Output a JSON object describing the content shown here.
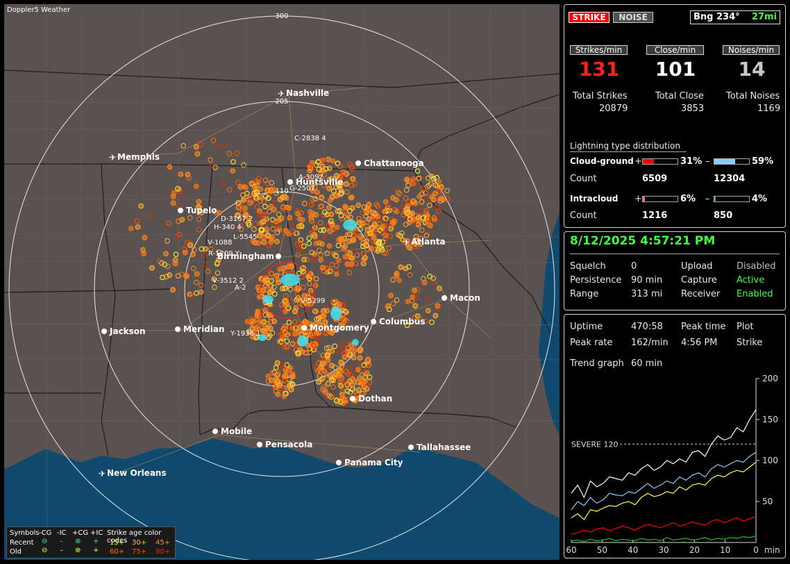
{
  "app_title": "Doppler5 Weather",
  "header": {
    "strike_tab": "STRIKE",
    "noise_tab": "NOISE",
    "bearing": "Bng 234°",
    "distance": "27mi"
  },
  "rates": {
    "strikes_label": "Strikes/min",
    "close_label": "Close/min",
    "noises_label": "Noises/min",
    "strikes_value": "131",
    "close_value": "101",
    "noises_value": "14",
    "total_strikes_label": "Total Strikes",
    "total_close_label": "Total Close",
    "total_noises_label": "Total Noises",
    "total_strikes": "20879",
    "total_close": "3853",
    "total_noises": "1169"
  },
  "distribution": {
    "title": "Lightning type distribution",
    "cg_label": "Cloud-ground",
    "ic_label": "Intracloud",
    "count_label": "Count",
    "plus": "+",
    "minus": "–",
    "cg_pos_pct": "31%",
    "cg_neg_pct": "59%",
    "cg_pos_fill": 0.31,
    "cg_neg_fill": 0.59,
    "cg_pos_count": "6509",
    "cg_neg_count": "12304",
    "ic_pos_pct": "6%",
    "ic_neg_pct": "4%",
    "ic_pos_fill": 0.06,
    "ic_neg_fill": 0.04,
    "ic_pos_count": "1216",
    "ic_neg_count": "850",
    "colors": {
      "cg_pos": "#ff0000",
      "cg_neg": "#8ecbf5",
      "ic_pos": "#ff5a9a",
      "ic_neg": "#20c020"
    }
  },
  "status": {
    "datetime": "8/12/2025 4:57:21 PM",
    "squelch_label": "Squelch",
    "squelch": "0",
    "persistence_label": "Persistence",
    "persistence": "90 min",
    "range_label": "Range",
    "range": "313 mi",
    "upload_label": "Upload",
    "upload": "Disabled",
    "capture_label": "Capture",
    "capture": "Active",
    "receiver_label": "Receiver",
    "receiver": "Enabled"
  },
  "stats": {
    "uptime_label": "Uptime",
    "uptime": "470:58",
    "peak_time_label": "Peak time",
    "peak_time": "4:56 PM",
    "plot_label": "Plot",
    "plot": "Strike",
    "peak_rate_label": "Peak rate",
    "peak_rate": "162/min",
    "trend_label": "Trend graph",
    "trend": "60 min"
  },
  "chart_data": {
    "type": "line",
    "severe_label": "SEVERE 120",
    "severe_value": 120,
    "ylim": [
      0,
      200
    ],
    "y_ticks": [
      "200",
      "150",
      "100",
      "50"
    ],
    "x_ticks": [
      "60",
      "50",
      "40",
      "30",
      "20",
      "10",
      "0"
    ],
    "x_unit": "min",
    "series": [
      {
        "color": "#ffffff",
        "values": [
          60,
          70,
          55,
          75,
          68,
          72,
          80,
          78,
          76,
          85,
          82,
          90,
          95,
          88,
          92,
          100,
          96,
          102,
          98,
          110,
          112,
          105,
          120,
          130,
          125,
          128,
          140,
          135,
          150,
          162
        ]
      },
      {
        "color": "#8ecbf5",
        "values": [
          40,
          50,
          45,
          55,
          48,
          52,
          60,
          58,
          57,
          62,
          60,
          66,
          72,
          66,
          70,
          75,
          72,
          80,
          76,
          82,
          85,
          80,
          90,
          95,
          92,
          96,
          100,
          98,
          105,
          110
        ]
      },
      {
        "color": "#ffff40",
        "values": [
          30,
          35,
          28,
          40,
          38,
          42,
          45,
          44,
          48,
          50,
          46,
          55,
          60,
          56,
          58,
          62,
          60,
          68,
          64,
          70,
          72,
          70,
          78,
          82,
          80,
          85,
          88,
          86,
          92,
          98
        ]
      },
      {
        "color": "#ff0000",
        "values": [
          10,
          12,
          15,
          13,
          16,
          18,
          14,
          17,
          20,
          18,
          15,
          19,
          22,
          20,
          18,
          21,
          24,
          20,
          22,
          25,
          23,
          21,
          26,
          28,
          24,
          27,
          30,
          26,
          29,
          32
        ]
      },
      {
        "color": "#20c020",
        "values": [
          2,
          3,
          1,
          4,
          2,
          3,
          5,
          2,
          4,
          3,
          2,
          5,
          3,
          4,
          2,
          6,
          3,
          4,
          5,
          3,
          4,
          6,
          3,
          5,
          4,
          6,
          5,
          7,
          6,
          8
        ]
      }
    ]
  },
  "map": {
    "range_labels": [
      "300",
      "205",
      "110"
    ],
    "cities": [
      {
        "name": "Nashville",
        "type": "airport"
      },
      {
        "name": "Memphis",
        "type": "airport"
      },
      {
        "name": "Chattanooga",
        "type": "city"
      },
      {
        "name": "Huntsville",
        "type": "city"
      },
      {
        "name": "Tupelo",
        "type": "city"
      },
      {
        "name": "Atlanta",
        "type": "airport"
      },
      {
        "name": "Birmingham",
        "type": "city"
      },
      {
        "name": "Macon",
        "type": "city"
      },
      {
        "name": "Jackson",
        "type": "city"
      },
      {
        "name": "Meridian",
        "type": "city"
      },
      {
        "name": "Montgomery",
        "type": "city"
      },
      {
        "name": "Columbus",
        "type": "city"
      },
      {
        "name": "Dothan",
        "type": "city"
      },
      {
        "name": "Mobile",
        "type": "city"
      },
      {
        "name": "Pensacola",
        "type": "city"
      },
      {
        "name": "Tallahassee",
        "type": "city"
      },
      {
        "name": "Panama City",
        "type": "city"
      },
      {
        "name": "New Orleans",
        "type": "airport"
      }
    ],
    "storm_ids": [
      "C-2838 4",
      "A-3092",
      "G-2507",
      "D-3167 2",
      "H-340 4",
      "L-5545",
      "V-1088",
      "R-1209 Y",
      "V-3512 2",
      "A-2",
      "V-5299",
      "Y-1936 1"
    ],
    "legend": {
      "symbols_label": "Symbols",
      "cg_minus": "-CG",
      "ic_minus": "-IC",
      "cg_plus": "+CG",
      "ic_plus": "+IC",
      "age_label": "Strike age color codes",
      "recent_label": "Recent",
      "old_label": "Old",
      "recent_ages": [
        "15+",
        "30+",
        "45+"
      ],
      "old_ages": [
        "60+",
        "75+",
        "90+"
      ],
      "age_colors": [
        "#ffff40",
        "#ffc040",
        "#ff9020",
        "#ff7010",
        "#ff5000",
        "#e03000"
      ]
    }
  }
}
